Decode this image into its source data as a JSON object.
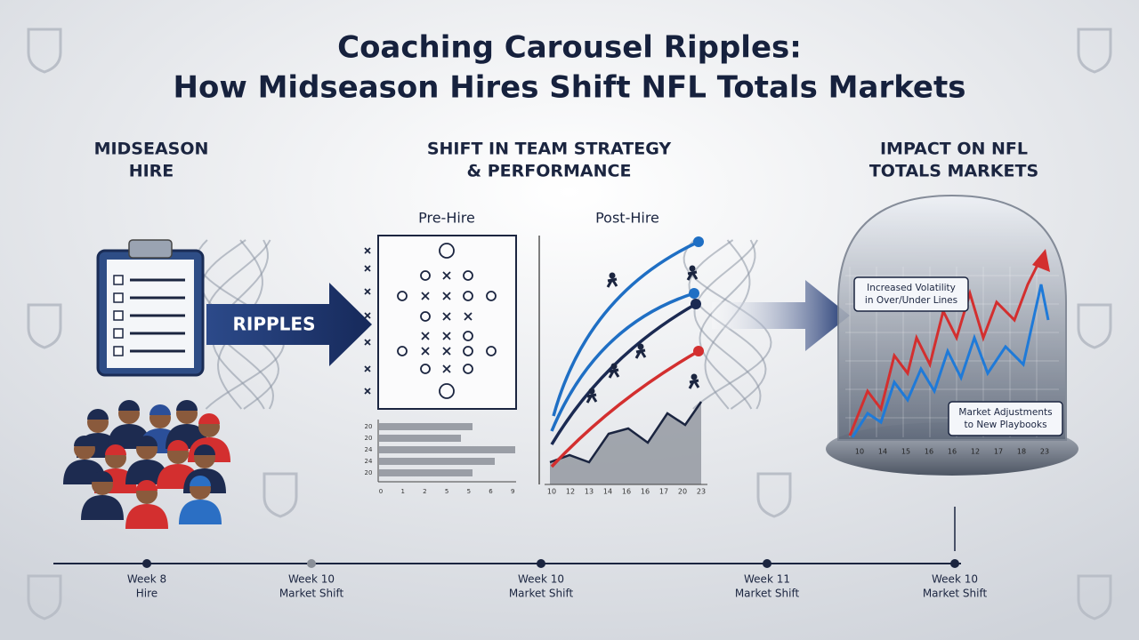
{
  "title": [
    "Coaching Carousel Ripples:",
    "How Midseason Hires Shift NFL Totals Markets"
  ],
  "sections": [
    {
      "heading": [
        "MIDSEASON",
        "HIRE"
      ]
    },
    {
      "heading": [
        "SHIFT IN TEAM STRATEGY",
        "& PERFORMANCE"
      ],
      "panels": [
        "Pre-Hire",
        "Post-Hire"
      ]
    },
    {
      "heading": [
        "IMPACT ON NFL",
        "TOTALS MARKETS"
      ]
    }
  ],
  "arrow_label": "RIPPLES",
  "pre_hire_chart": {
    "y_labels": [
      "20",
      "20",
      "24",
      "24",
      "20"
    ],
    "x_labels": [
      "0",
      "1",
      "2",
      "5",
      "5",
      "6",
      "9"
    ]
  },
  "post_hire_chart": {
    "x_labels": [
      "10",
      "12",
      "13",
      "14",
      "16",
      "16",
      "17",
      "20",
      "23"
    ]
  },
  "market_chart": {
    "x_labels": [
      "10",
      "14",
      "15",
      "16",
      "16",
      "12",
      "17",
      "18",
      "23"
    ],
    "callouts": [
      [
        "Increased Volatility",
        "in Over/Under Lines"
      ],
      [
        "Market Adjustments",
        "to New Playbooks"
      ]
    ]
  },
  "timeline": [
    {
      "week": "Week 8",
      "label": "Hire"
    },
    {
      "week": "Week 10",
      "label": "Market Shift"
    },
    {
      "week": "Week 10",
      "label": "Market Shift"
    },
    {
      "week": "Week 11",
      "label": "Market Shift"
    },
    {
      "week": "Week 10",
      "label": "Market Shift"
    }
  ]
}
